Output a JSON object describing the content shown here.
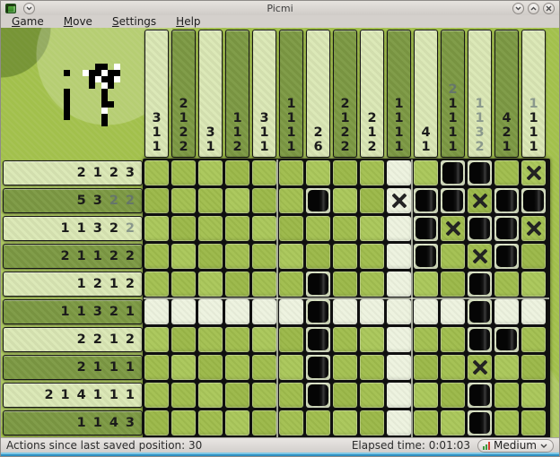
{
  "window": {
    "title": "Picmi",
    "buttons": {
      "menu": "window-menu",
      "minimize": "minimize",
      "maximize": "maximize",
      "close": "close"
    }
  },
  "menubar": {
    "items": [
      {
        "label": "Game",
        "accel": "G",
        "rest": "ame"
      },
      {
        "label": "Move",
        "accel": "M",
        "rest": "ove"
      },
      {
        "label": "Settings",
        "accel": "S",
        "rest": "ettings"
      },
      {
        "label": "Help",
        "accel": "H",
        "rest": "elp"
      }
    ]
  },
  "statusbar": {
    "actions_text": "Actions since last saved position: 30",
    "elapsed_text": "Elapsed time: 0:01:03",
    "difficulty": "Medium"
  },
  "board": {
    "rows": 10,
    "cols": 15,
    "col_hints": [
      [
        {
          "v": 3
        },
        {
          "v": 1
        },
        {
          "v": 1
        }
      ],
      [
        {
          "v": 2
        },
        {
          "v": 1
        },
        {
          "v": 2
        },
        {
          "v": 2
        }
      ],
      [
        {
          "v": 3
        },
        {
          "v": 1
        }
      ],
      [
        {
          "v": 1
        },
        {
          "v": 1
        },
        {
          "v": 2
        }
      ],
      [
        {
          "v": 3
        },
        {
          "v": 1
        },
        {
          "v": 1
        }
      ],
      [
        {
          "v": 1
        },
        {
          "v": 1
        },
        {
          "v": 1
        },
        {
          "v": 1
        }
      ],
      [
        {
          "v": 2
        },
        {
          "v": 6
        }
      ],
      [
        {
          "v": 2
        },
        {
          "v": 1
        },
        {
          "v": 2
        },
        {
          "v": 2
        }
      ],
      [
        {
          "v": 2
        },
        {
          "v": 1
        },
        {
          "v": 2
        }
      ],
      [
        {
          "v": 1
        },
        {
          "v": 1
        },
        {
          "v": 1
        },
        {
          "v": 1
        }
      ],
      [
        {
          "v": 4
        },
        {
          "v": 1
        }
      ],
      [
        {
          "v": 2,
          "done": true
        },
        {
          "v": 1
        },
        {
          "v": 1
        },
        {
          "v": 1
        },
        {
          "v": 1
        }
      ],
      [
        {
          "v": 1,
          "done": true
        },
        {
          "v": 1,
          "done": true
        },
        {
          "v": 3,
          "done": true
        },
        {
          "v": 2,
          "done": true
        }
      ],
      [
        {
          "v": 4
        },
        {
          "v": 2
        },
        {
          "v": 1
        }
      ],
      [
        {
          "v": 1,
          "done": true
        },
        {
          "v": 1
        },
        {
          "v": 1
        },
        {
          "v": 1
        }
      ]
    ],
    "row_hints": [
      [
        {
          "v": 2
        },
        {
          "v": 1
        },
        {
          "v": 2
        },
        {
          "v": 3
        }
      ],
      [
        {
          "v": 5
        },
        {
          "v": 3
        },
        {
          "v": 2,
          "done": true
        },
        {
          "v": 2,
          "done": true
        }
      ],
      [
        {
          "v": 1
        },
        {
          "v": 1
        },
        {
          "v": 3
        },
        {
          "v": 2
        },
        {
          "v": 2,
          "done": true
        }
      ],
      [
        {
          "v": 2
        },
        {
          "v": 1
        },
        {
          "v": 1
        },
        {
          "v": 2
        },
        {
          "v": 2
        }
      ],
      [
        {
          "v": 1
        },
        {
          "v": 2
        },
        {
          "v": 1
        },
        {
          "v": 2
        }
      ],
      [
        {
          "v": 1
        },
        {
          "v": 1
        },
        {
          "v": 3
        },
        {
          "v": 2
        },
        {
          "v": 1
        }
      ],
      [
        {
          "v": 2
        },
        {
          "v": 2
        },
        {
          "v": 1
        },
        {
          "v": 2
        }
      ],
      [
        {
          "v": 2
        },
        {
          "v": 1
        },
        {
          "v": 1
        },
        {
          "v": 1
        }
      ],
      [
        {
          "v": 2
        },
        {
          "v": 1
        },
        {
          "v": 4
        },
        {
          "v": 1
        },
        {
          "v": 1
        },
        {
          "v": 1
        }
      ],
      [
        {
          "v": 1
        },
        {
          "v": 1
        },
        {
          "v": 4
        },
        {
          "v": 3
        }
      ]
    ],
    "cells": [
      "...........FF.X",
      "......F..XFFXFF",
      "..........FXFFX",
      "..........F.XF.",
      "......F.....F..",
      "......F.....F..",
      "......F.....FF.",
      "......F.....X..",
      "......F.....F..",
      "............F.."
    ],
    "highlight": {
      "row": 6,
      "col": 10
    }
  },
  "colors": {
    "board_green": "#a2c04c",
    "band_light": "#dbe8b6",
    "band_dark": "#7d9a44",
    "hint_text": "#1b1b1b",
    "hint_done_light": "#8a988c",
    "hint_done_dark": "#66766a",
    "highlight_cell": "#edf3df",
    "bottom_border": "#2e8fc0",
    "difficulty_bar_green": "#3c9a3c",
    "difficulty_bar_red": "#d04030"
  }
}
